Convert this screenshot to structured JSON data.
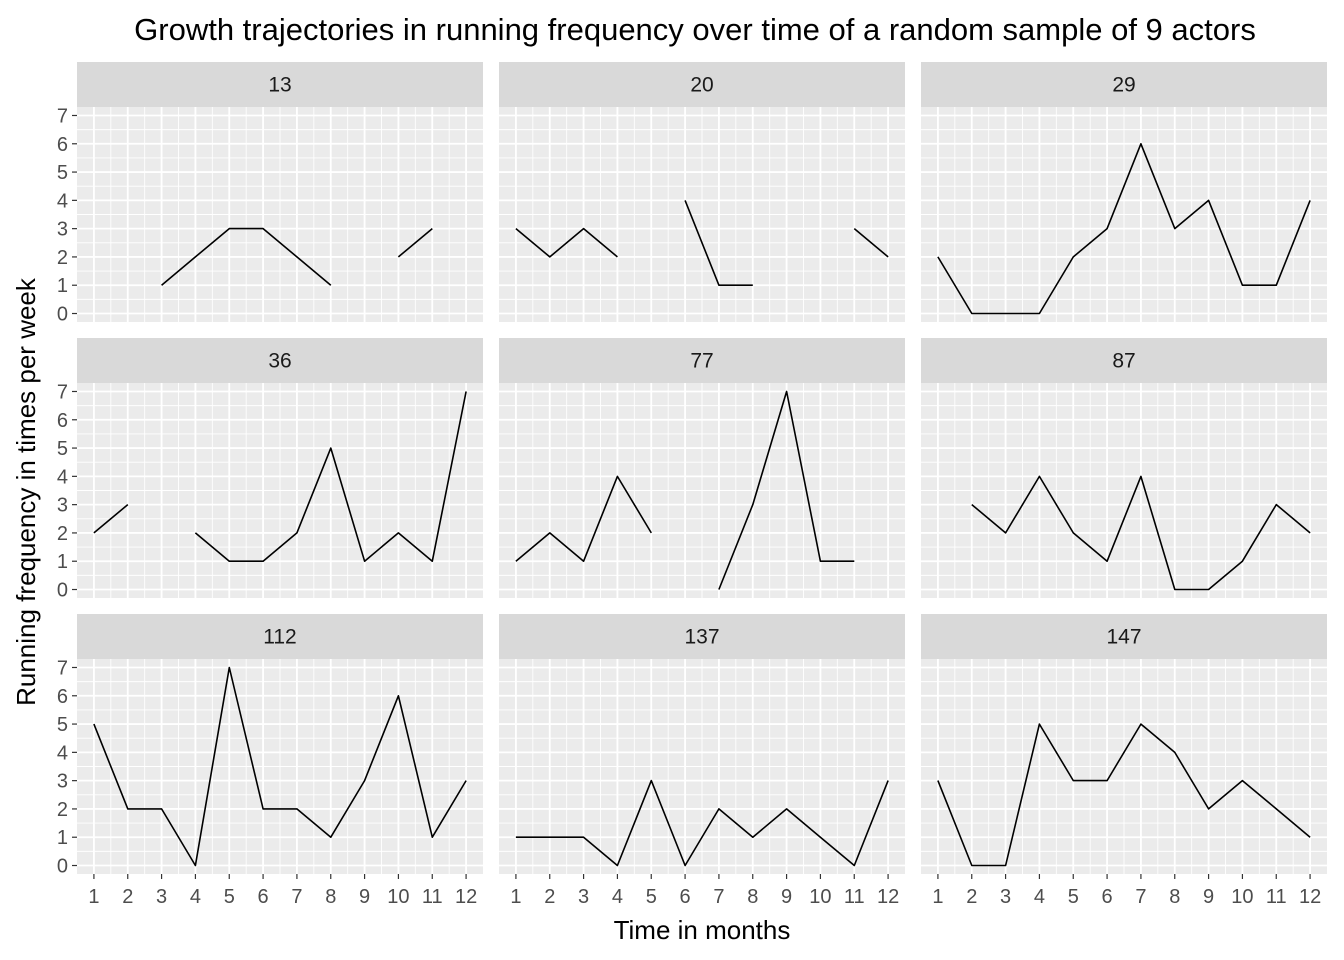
{
  "chart_data": {
    "type": "line",
    "layout": "facet-grid-3x3",
    "title": "Growth trajectories in running frequency over time of a random sample of 9 actors",
    "xlabel": "Time in months",
    "ylabel": "Running frequency in times per week",
    "x_ticks": [
      1,
      2,
      3,
      4,
      5,
      6,
      7,
      8,
      9,
      10,
      11,
      12
    ],
    "y_ticks": [
      0,
      1,
      2,
      3,
      4,
      5,
      6,
      7
    ],
    "xlim": [
      0.5,
      12.5
    ],
    "ylim": [
      -0.3,
      7.3
    ],
    "grid": true,
    "legend": "none",
    "colors": {
      "panel_background": "#ebebeb",
      "strip_background": "#d9d9d9",
      "grid": "#ffffff",
      "line": "#000000",
      "tick_text": "#4d4d4d"
    },
    "panels": [
      {
        "label": "13",
        "values": [
          null,
          null,
          1,
          2,
          3,
          3,
          2,
          1,
          null,
          2,
          3,
          null
        ]
      },
      {
        "label": "20",
        "values": [
          3,
          2,
          3,
          2,
          null,
          4,
          1,
          1,
          null,
          null,
          3,
          2
        ]
      },
      {
        "label": "29",
        "values": [
          2,
          0,
          0,
          0,
          2,
          3,
          6,
          3,
          4,
          1,
          1,
          4
        ]
      },
      {
        "label": "36",
        "values": [
          2,
          3,
          null,
          2,
          1,
          1,
          2,
          5,
          1,
          2,
          1,
          7
        ]
      },
      {
        "label": "77",
        "values": [
          1,
          2,
          1,
          4,
          2,
          null,
          0,
          3,
          7,
          1,
          1,
          null
        ]
      },
      {
        "label": "87",
        "values": [
          null,
          3,
          2,
          4,
          2,
          1,
          4,
          0,
          0,
          1,
          3,
          2
        ]
      },
      {
        "label": "112",
        "values": [
          5,
          2,
          2,
          0,
          7,
          2,
          2,
          1,
          3,
          6,
          1,
          3
        ]
      },
      {
        "label": "137",
        "values": [
          1,
          1,
          1,
          0,
          3,
          0,
          2,
          1,
          2,
          1,
          0,
          3
        ]
      },
      {
        "label": "147",
        "values": [
          3,
          0,
          0,
          5,
          3,
          3,
          5,
          4,
          2,
          3,
          2,
          1
        ]
      }
    ]
  }
}
